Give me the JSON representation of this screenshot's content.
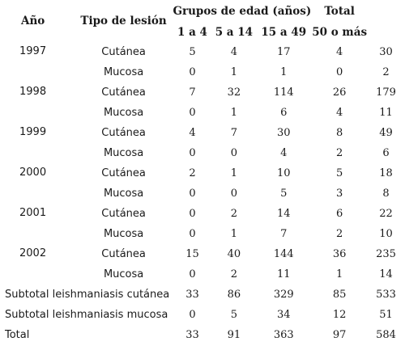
{
  "headers": {
    "year": "Año",
    "type": "Tipo de lesión",
    "age_groups": "Grupos de edad (años)",
    "total": "Total",
    "ages": [
      "1 a 4",
      "5 a 14",
      "15 a 49",
      "50 o más"
    ]
  },
  "years": [
    {
      "year": "1997",
      "rows": [
        {
          "type": "Cutánea",
          "values": [
            "5",
            "4",
            "17",
            "4",
            "30"
          ]
        },
        {
          "type": "Mucosa",
          "values": [
            "0",
            "1",
            "1",
            "0",
            "2"
          ]
        }
      ]
    },
    {
      "year": "1998",
      "rows": [
        {
          "type": "Cutánea",
          "values": [
            "7",
            "32",
            "114",
            "26",
            "179"
          ]
        },
        {
          "type": "Mucosa",
          "values": [
            "0",
            "1",
            "6",
            "4",
            "11"
          ]
        }
      ]
    },
    {
      "year": "1999",
      "rows": [
        {
          "type": "Cutánea",
          "values": [
            "4",
            "7",
            "30",
            "8",
            "49"
          ]
        },
        {
          "type": "Mucosa",
          "values": [
            "0",
            "0",
            "4",
            "2",
            "6"
          ]
        }
      ]
    },
    {
      "year": "2000",
      "rows": [
        {
          "type": "Cutánea",
          "values": [
            "2",
            "1",
            "10",
            "5",
            "18"
          ]
        },
        {
          "type": "Mucosa",
          "values": [
            "0",
            "0",
            "5",
            "3",
            "8"
          ]
        }
      ]
    },
    {
      "year": "2001",
      "rows": [
        {
          "type": "Cutánea",
          "values": [
            "0",
            "2",
            "14",
            "6",
            "22"
          ]
        },
        {
          "type": "Mucosa",
          "values": [
            "0",
            "1",
            "7",
            "2",
            "10"
          ]
        }
      ]
    },
    {
      "year": "2002",
      "rows": [
        {
          "type": "Cutánea",
          "values": [
            "15",
            "40",
            "144",
            "36",
            "235"
          ]
        },
        {
          "type": "Mucosa",
          "values": [
            "0",
            "2",
            "11",
            "1",
            "14"
          ]
        }
      ]
    }
  ],
  "summary": [
    {
      "label": "Subtotal leishmaniasis cutánea",
      "values": [
        "33",
        "86",
        "329",
        "85",
        "533"
      ]
    },
    {
      "label": "Subtotal leishmaniasis mucosa",
      "values": [
        "0",
        "5",
        "34",
        "12",
        "51"
      ]
    },
    {
      "label": "Total",
      "values": [
        "33",
        "91",
        "363",
        "97",
        "584"
      ]
    }
  ]
}
